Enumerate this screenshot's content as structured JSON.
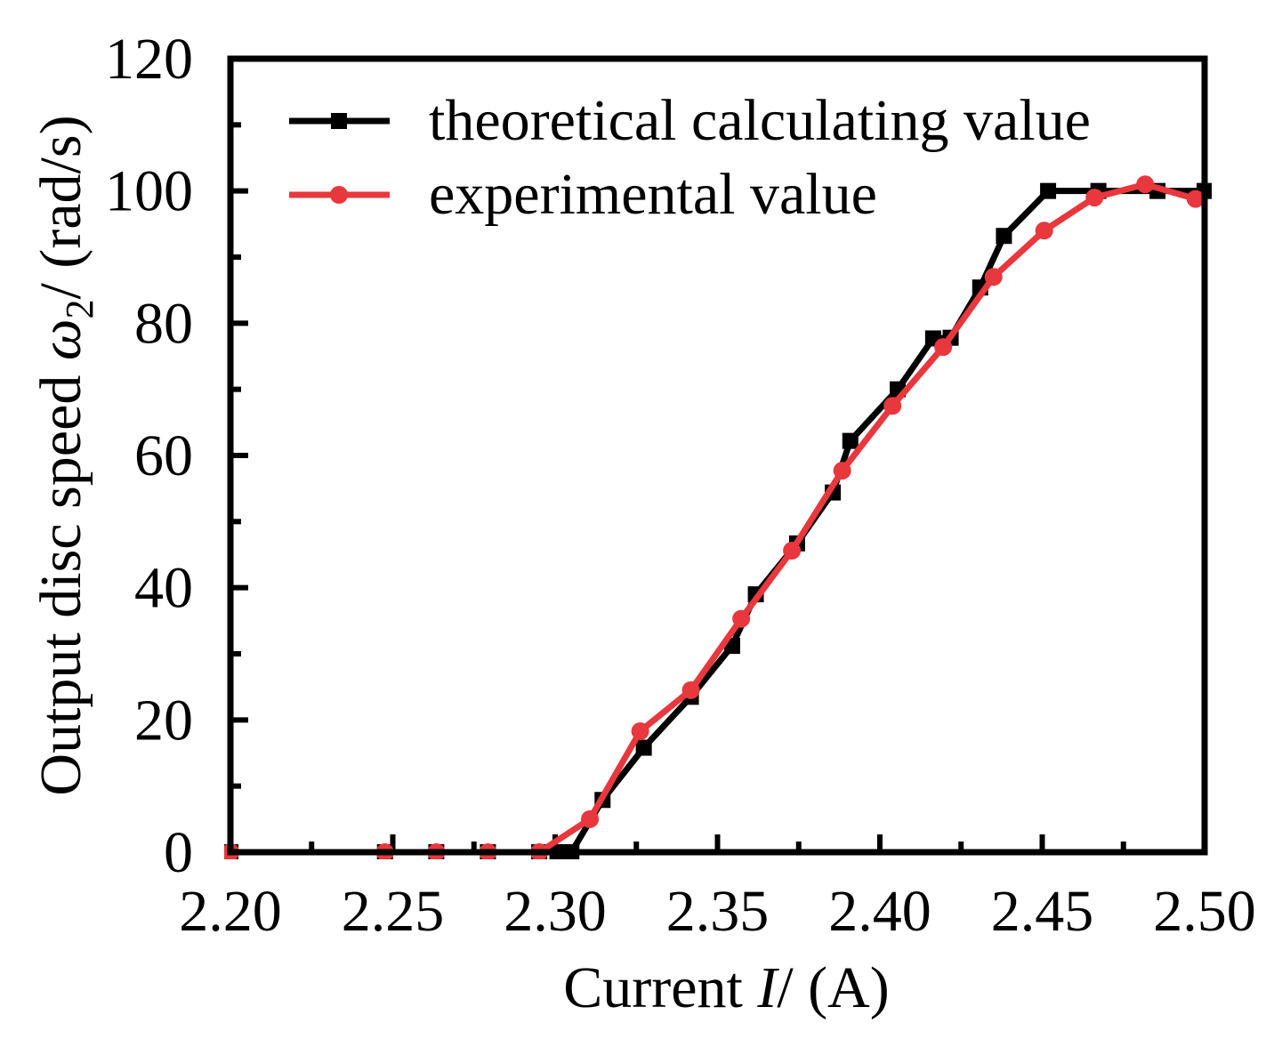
{
  "chart_data": {
    "type": "line",
    "title": "",
    "xlabel": {
      "prefix": "Current ",
      "symbol": "I",
      "suffix": "/ (A)"
    },
    "ylabel": {
      "prefix": "Output disc speed ",
      "symbol": "ω",
      "subscript": "2",
      "suffix": "/ (rad/s)"
    },
    "xlim": [
      2.2,
      2.5
    ],
    "ylim": [
      0,
      120
    ],
    "x_ticks": [
      "2.20",
      "2.25",
      "2.30",
      "2.35",
      "2.40",
      "2.45",
      "2.50"
    ],
    "y_ticks": [
      "0",
      "20",
      "40",
      "60",
      "80",
      "100",
      "120"
    ],
    "legend_position": "top-left",
    "series": [
      {
        "name": "theoretical calculating value",
        "color": "#000000",
        "marker": "square",
        "x": [
          2.2,
          2.2476,
          2.2634,
          2.2793,
          2.2951,
          2.3007,
          2.305,
          2.3146,
          2.3273,
          2.3418,
          2.3545,
          2.3618,
          2.3745,
          2.3855,
          2.3909,
          2.4055,
          2.4164,
          2.4218,
          2.4309,
          2.4382,
          2.4518,
          2.4673,
          2.4855,
          2.5
        ],
        "y": [
          0,
          0,
          0,
          0,
          0,
          0,
          0,
          7.9,
          15.8,
          23.5,
          31.2,
          39.0,
          46.7,
          54.4,
          62.2,
          70.0,
          77.7,
          77.8,
          85.4,
          93.2,
          100,
          100,
          100,
          100
        ]
      },
      {
        "name": "experimental value",
        "color": "#e8373d",
        "marker": "circle",
        "x": [
          2.2,
          2.2476,
          2.2634,
          2.2793,
          2.2951,
          2.3107,
          2.3262,
          2.3418,
          2.3573,
          2.3729,
          2.3884,
          2.4039,
          2.4195,
          2.435,
          2.4506,
          2.4661,
          2.4817,
          2.4972
        ],
        "y": [
          0,
          0,
          0,
          0,
          0,
          5.0,
          18.3,
          24.5,
          35.3,
          45.6,
          57.7,
          67.5,
          76.4,
          87.0,
          94.0,
          99.0,
          101.0,
          98.8
        ]
      }
    ]
  }
}
